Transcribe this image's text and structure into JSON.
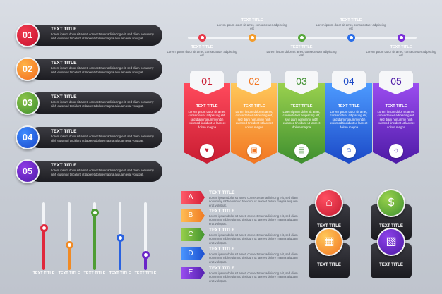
{
  "lorem_short": "Lorem ipsum dolor sit amet, consectetuer adipiscing elit, sed diam nonummy nibh euismod tincidunt ut laoreet dolore magna aliquam erat volutpat.",
  "left_list": [
    {
      "number": "01",
      "title": "TEXT TITLE",
      "color1": "#ef3b4e",
      "color2": "#c8102e"
    },
    {
      "number": "02",
      "title": "TEXT TITLE",
      "color1": "#ffb347",
      "color2": "#f26b1d"
    },
    {
      "number": "03",
      "title": "TEXT TITLE",
      "color1": "#8bc34a",
      "color2": "#3f8f2e"
    },
    {
      "number": "04",
      "title": "TEXT TITLE",
      "color1": "#3d8bff",
      "color2": "#1a47c9"
    },
    {
      "number": "05",
      "title": "TEXT TITLE",
      "color1": "#8e3be6",
      "color2": "#4f1ca8"
    }
  ],
  "timeline": {
    "items": [
      {
        "title": "TEXT TITLE",
        "text": "Lorem ipsum dolor sit amet, consectetuer adipiscing elit",
        "color": "#e83a4a"
      },
      {
        "title": "TEXT TITLE",
        "text": "Lorem ipsum dolor sit amet, consectetuer adipiscing elit",
        "color": "#f39c2c"
      },
      {
        "title": "TEXT TITLE",
        "text": "Lorem ipsum dolor sit amet, consectetuer adipiscing elit",
        "color": "#57a83b"
      },
      {
        "title": "TEXT TITLE",
        "text": "Lorem ipsum dolor sit amet, consectetuer adipiscing elit",
        "color": "#2a6ee8"
      },
      {
        "title": "TEXT TITLE",
        "text": "Lorem ipsum dolor sit amet, consectetuer adipiscing elit",
        "color": "#7b2fd9"
      }
    ]
  },
  "cards": [
    {
      "number": "01",
      "title": "TEXT TITLE",
      "text": "Lorem ipsum dolor sit amet, consectetuer adipiscing elit, sed diam nonummy nibh euismod tincidunt ut laoreet dolore magna",
      "color1": "#ff4a5c",
      "color2": "#c91c32",
      "icon": "heart-icon",
      "glyph": "♥"
    },
    {
      "number": "02",
      "title": "TEXT TITLE",
      "text": "Lorem ipsum dolor sit amet, consectetuer adipiscing elit, sed diam nonummy nibh euismod tincidunt ut laoreet dolore magna",
      "color1": "#ffc85a",
      "color2": "#f27622",
      "icon": "image-icon",
      "glyph": "▣"
    },
    {
      "number": "03",
      "title": "TEXT TITLE",
      "text": "Lorem ipsum dolor sit amet, consectetuer adipiscing elit, sed diam nonummy nibh euismod tincidunt ut laoreet dolore magna",
      "color1": "#9ad14e",
      "color2": "#3e8f2f",
      "icon": "presentation-icon",
      "glyph": "▤"
    },
    {
      "number": "04",
      "title": "TEXT TITLE",
      "text": "Lorem ipsum dolor sit amet, consectetuer adipiscing elit, sed diam nonummy nibh euismod tincidunt ut laoreet dolore magna",
      "color1": "#4d9bff",
      "color2": "#1b49c7",
      "icon": "user-icon",
      "glyph": "☺"
    },
    {
      "number": "05",
      "title": "TEXT TITLE",
      "text": "Lorem ipsum dolor sit amet, consectetuer adipiscing elit, sed diam nonummy nibh euismod tincidunt ut laoreet dolore magna",
      "color1": "#9b4cf0",
      "color2": "#4d1aa6",
      "icon": "lightbulb-icon",
      "glyph": "☼"
    }
  ],
  "sliders": [
    {
      "label": "TEXT TITLE",
      "level": 0.62,
      "color": "#e0283c"
    },
    {
      "label": "TEXT TITLE",
      "level": 0.37,
      "color": "#f08a24"
    },
    {
      "label": "TEXT TITLE",
      "level": 0.85,
      "color": "#4e9d34"
    },
    {
      "label": "TEXT TITLE",
      "level": 0.47,
      "color": "#2a62e0"
    },
    {
      "label": "TEXT TITLE",
      "level": 0.22,
      "color": "#6a25c8"
    }
  ],
  "letter_list": [
    {
      "letter": "A",
      "title": "TEXT TITLE",
      "color1": "#ff5b6a",
      "color2": "#d52038"
    },
    {
      "letter": "B",
      "title": "TEXT TITLE",
      "color1": "#ffbe55",
      "color2": "#f07a22"
    },
    {
      "letter": "C",
      "title": "TEXT TITLE",
      "color1": "#98cf4c",
      "color2": "#43952f"
    },
    {
      "letter": "D",
      "title": "TEXT TITLE",
      "color1": "#4a96ff",
      "color2": "#1c4fd0"
    },
    {
      "letter": "E",
      "title": "TEXT TITLE",
      "color1": "#9a4ef0",
      "color2": "#5420b0"
    }
  ],
  "boxes": [
    {
      "title": "TEXT TITLE",
      "icon": "building-icon",
      "glyph": "⌂",
      "color1": "#ff4f61",
      "color2": "#c51b31"
    },
    {
      "title": "TEXT TITLE",
      "icon": "money-icon",
      "glyph": "$",
      "color1": "#9ad24c",
      "color2": "#3e9130"
    },
    {
      "title": "TEXT TITLE",
      "icon": "chart-board-icon",
      "glyph": "▦",
      "color1": "#ffc85a",
      "color2": "#f27622"
    },
    {
      "title": "TEXT TITLE",
      "icon": "presenter-icon",
      "glyph": "▧",
      "color1": "#8d42ea",
      "color2": "#4c1aa4"
    }
  ]
}
